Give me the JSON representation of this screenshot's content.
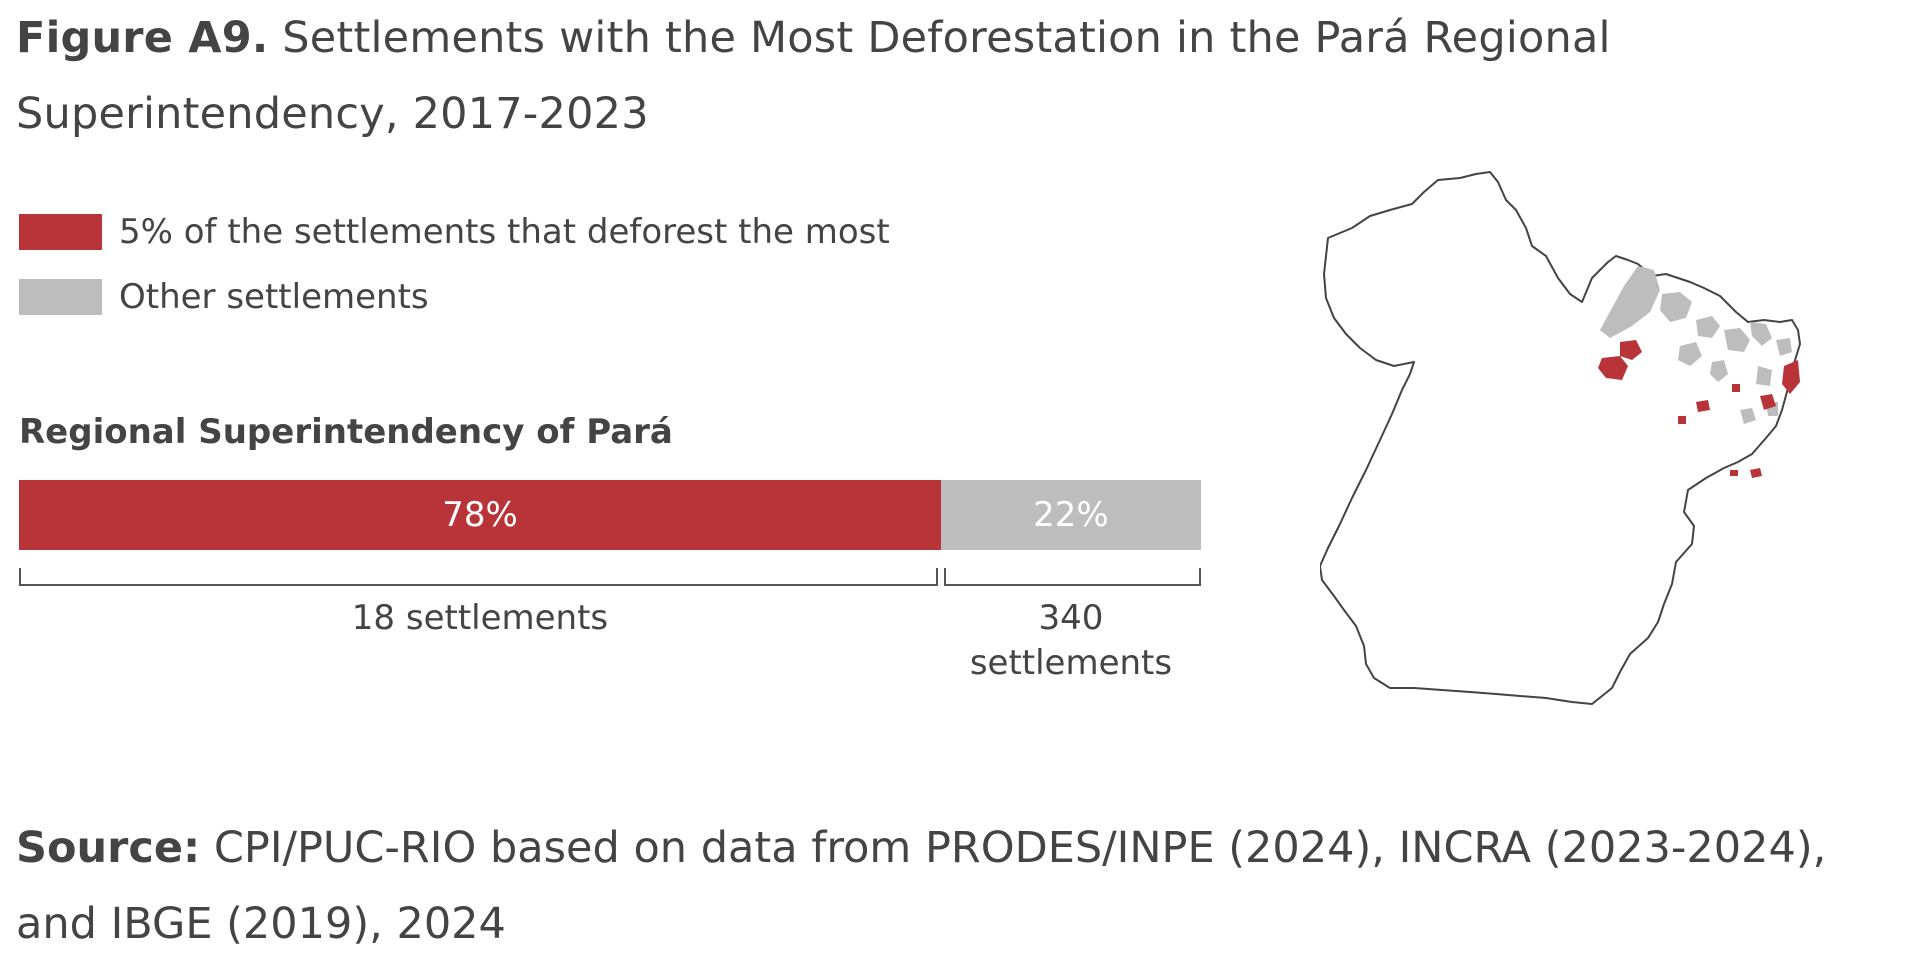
{
  "title": {
    "label": "Figure A9.",
    "text": "Settlements with the Most Deforestation in the Pará Regional Superintendency, 2017-2023"
  },
  "legend": [
    {
      "label": "5% of the settlements that deforest the most",
      "color": "#b93438"
    },
    {
      "label": "Other settlements",
      "color": "#bdbdbd"
    }
  ],
  "chart_data": {
    "type": "bar",
    "orientation": "horizontal-stacked",
    "title": "Regional Superintendency of Pará",
    "series": [
      {
        "name": "5% of the settlements that deforest the most",
        "value": 78,
        "value_label": "78%",
        "count_label": "18 settlements",
        "color": "#b93438"
      },
      {
        "name": "Other settlements",
        "value": 22,
        "value_label": "22%",
        "count_label": "340 settlements",
        "color": "#bdbdbd"
      }
    ],
    "xlim": [
      0,
      100
    ]
  },
  "map": {
    "outline_color": "#444444",
    "highlight_color": "#b93438",
    "other_color": "#bdbdbd"
  },
  "source": {
    "label": "Source:",
    "text": "CPI/PUC-RIO based on data from PRODES/INPE (2024), INCRA (2023-2024), and IBGE (2019), 2024"
  }
}
